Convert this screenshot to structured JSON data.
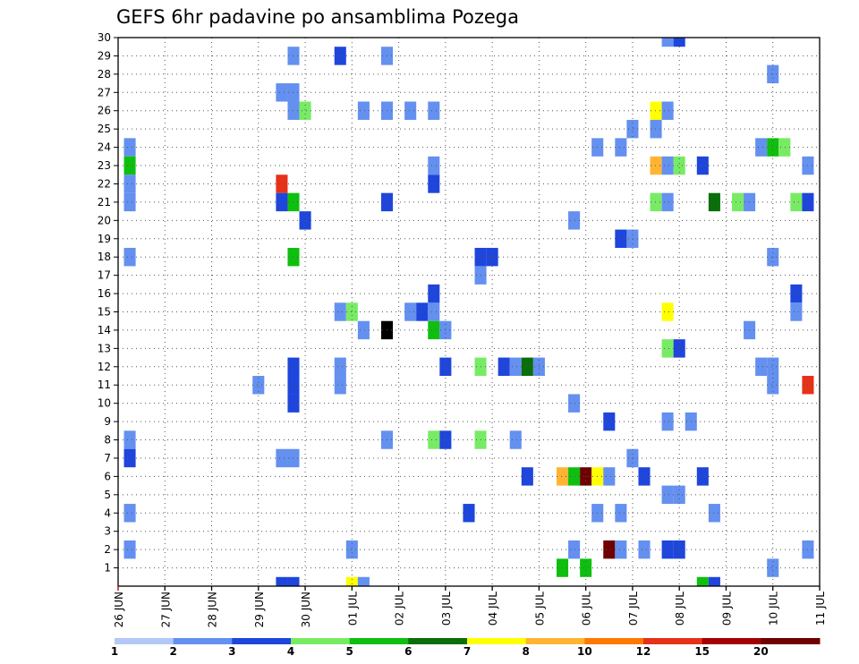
{
  "chart_data": {
    "type": "heatmap",
    "title": "GEFS 6hr padavine po ansamblima Pozega",
    "xlabel": "",
    "ylabel": "",
    "x_ticks": [
      "26 JUN",
      "27 JUN",
      "28 JUN",
      "29 JUN",
      "30 JUN",
      "01 JUL",
      "02 JUL",
      "03 JUL",
      "04 JUL",
      "05 JUL",
      "06 JUL",
      "07 JUL",
      "08 JUL",
      "09 JUL",
      "10 JUL",
      "11 JUL"
    ],
    "xlim": [
      0,
      15
    ],
    "ylim": [
      0,
      30
    ],
    "y_ticks": [
      1,
      2,
      3,
      4,
      5,
      6,
      7,
      8,
      9,
      10,
      11,
      12,
      13,
      14,
      15,
      16,
      17,
      18,
      19,
      20,
      21,
      22,
      23,
      24,
      25,
      26,
      27,
      28,
      29,
      30
    ],
    "grid": true,
    "colorbar": {
      "boundaries": [
        1,
        2,
        3,
        4,
        5,
        6,
        7,
        8,
        10,
        12,
        15,
        20
      ],
      "colors": [
        "#b4c8f8",
        "#6490f0",
        "#1e46dc",
        "#78eb64",
        "#0fbf0f",
        "#0a6e0a",
        "#ffff00",
        "#ffb432",
        "#ff7800",
        "#e63219",
        "#a50000",
        "#6e0000"
      ]
    },
    "cells": [
      [
        0.25,
        24,
        1
      ],
      [
        0.25,
        23,
        4
      ],
      [
        0.25,
        22,
        1
      ],
      [
        0.25,
        21,
        1
      ],
      [
        0.25,
        18,
        1
      ],
      [
        0.25,
        8,
        1
      ],
      [
        0.25,
        7,
        2
      ],
      [
        0.25,
        4,
        1
      ],
      [
        0.25,
        2,
        1
      ],
      [
        3.5,
        27,
        1
      ],
      [
        3.75,
        27,
        1
      ],
      [
        3.75,
        29,
        1
      ],
      [
        3.75,
        26,
        1
      ],
      [
        4.0,
        26,
        3
      ],
      [
        3.5,
        22,
        9
      ],
      [
        3.5,
        21,
        2
      ],
      [
        3.75,
        21,
        4
      ],
      [
        4.0,
        20,
        2
      ],
      [
        3.75,
        18,
        4
      ],
      [
        3.0,
        11,
        1
      ],
      [
        3.75,
        12,
        2
      ],
      [
        3.75,
        11,
        2
      ],
      [
        3.75,
        10,
        2
      ],
      [
        3.5,
        7,
        1
      ],
      [
        3.75,
        7,
        1
      ],
      [
        3.5,
        0,
        2
      ],
      [
        3.75,
        0,
        2
      ],
      [
        4.75,
        29,
        2
      ],
      [
        5.25,
        26,
        1
      ],
      [
        4.75,
        15,
        1
      ],
      [
        5.0,
        15,
        3
      ],
      [
        5.25,
        14,
        1
      ],
      [
        5.75,
        14,
        12
      ],
      [
        4.75,
        12,
        1
      ],
      [
        4.75,
        11,
        1
      ],
      [
        5.0,
        2,
        1
      ],
      [
        5.0,
        0,
        6
      ],
      [
        5.25,
        0,
        1
      ],
      [
        5.75,
        29,
        1
      ],
      [
        5.75,
        26,
        1
      ],
      [
        6.25,
        26,
        1
      ],
      [
        6.75,
        26,
        1
      ],
      [
        5.75,
        21,
        2
      ],
      [
        6.25,
        15,
        1
      ],
      [
        6.5,
        15,
        2
      ],
      [
        6.75,
        15,
        1
      ],
      [
        6.75,
        14,
        4
      ],
      [
        6.75,
        16,
        2
      ],
      [
        6.75,
        23,
        1
      ],
      [
        6.75,
        22,
        2
      ],
      [
        7.0,
        14,
        1
      ],
      [
        7.0,
        12,
        2
      ],
      [
        5.75,
        8,
        1
      ],
      [
        6.75,
        8,
        3
      ],
      [
        7.0,
        8,
        2
      ],
      [
        7.75,
        18,
        2
      ],
      [
        8.0,
        18,
        2
      ],
      [
        7.75,
        17,
        1
      ],
      [
        7.75,
        12,
        3
      ],
      [
        8.25,
        12,
        2
      ],
      [
        8.5,
        12,
        1
      ],
      [
        8.75,
        12,
        5
      ],
      [
        9.0,
        12,
        1
      ],
      [
        7.75,
        8,
        3
      ],
      [
        8.5,
        8,
        1
      ],
      [
        7.5,
        4,
        2
      ],
      [
        8.75,
        6,
        2
      ],
      [
        9.5,
        6,
        7
      ],
      [
        9.75,
        6,
        4
      ],
      [
        10.0,
        6,
        11
      ],
      [
        10.25,
        6,
        6
      ],
      [
        10.5,
        6,
        1
      ],
      [
        9.5,
        1,
        4
      ],
      [
        10.0,
        1,
        4
      ],
      [
        9.75,
        2,
        1
      ],
      [
        9.75,
        10,
        1
      ],
      [
        9.75,
        20,
        1
      ],
      [
        10.25,
        24,
        1
      ],
      [
        10.75,
        24,
        1
      ],
      [
        11.0,
        25,
        1
      ],
      [
        10.75,
        19,
        2
      ],
      [
        11.0,
        19,
        1
      ],
      [
        10.5,
        9,
        2
      ],
      [
        10.25,
        4,
        1
      ],
      [
        10.75,
        4,
        1
      ],
      [
        10.5,
        2,
        11
      ],
      [
        10.75,
        2,
        1
      ],
      [
        11.0,
        7,
        1
      ],
      [
        11.25,
        6,
        2
      ],
      [
        11.25,
        2,
        1
      ],
      [
        11.5,
        26,
        6
      ],
      [
        11.75,
        26,
        1
      ],
      [
        11.5,
        25,
        1
      ],
      [
        11.5,
        23,
        7
      ],
      [
        11.75,
        23,
        1
      ],
      [
        12.0,
        23,
        3
      ],
      [
        12.5,
        23,
        2
      ],
      [
        11.5,
        21,
        3
      ],
      [
        11.75,
        21,
        1
      ],
      [
        12.75,
        21,
        5
      ],
      [
        11.75,
        15,
        6
      ],
      [
        11.75,
        13,
        3
      ],
      [
        12.0,
        13,
        2
      ],
      [
        11.75,
        9,
        1
      ],
      [
        12.25,
        9,
        1
      ],
      [
        11.75,
        5,
        1
      ],
      [
        12.0,
        5,
        1
      ],
      [
        11.75,
        2,
        2
      ],
      [
        12.0,
        2,
        2
      ],
      [
        12.5,
        6,
        2
      ],
      [
        12.75,
        4,
        1
      ],
      [
        12.5,
        0,
        4
      ],
      [
        12.75,
        0,
        2
      ],
      [
        11.75,
        30,
        1
      ],
      [
        12.0,
        30,
        2
      ],
      [
        13.75,
        24,
        1
      ],
      [
        14.0,
        24,
        4
      ],
      [
        14.25,
        24,
        3
      ],
      [
        13.25,
        21,
        3
      ],
      [
        13.5,
        21,
        1
      ],
      [
        14.0,
        28,
        1
      ],
      [
        14.75,
        23,
        1
      ],
      [
        14.5,
        21,
        3
      ],
      [
        14.75,
        21,
        2
      ],
      [
        14.0,
        18,
        1
      ],
      [
        14.5,
        16,
        2
      ],
      [
        14.5,
        15,
        1
      ],
      [
        13.5,
        14,
        1
      ],
      [
        13.75,
        12,
        1
      ],
      [
        14.0,
        12,
        1
      ],
      [
        14.0,
        11,
        1
      ],
      [
        14.75,
        11,
        9
      ],
      [
        14.0,
        1,
        1
      ],
      [
        14.75,
        2,
        1
      ]
    ]
  }
}
